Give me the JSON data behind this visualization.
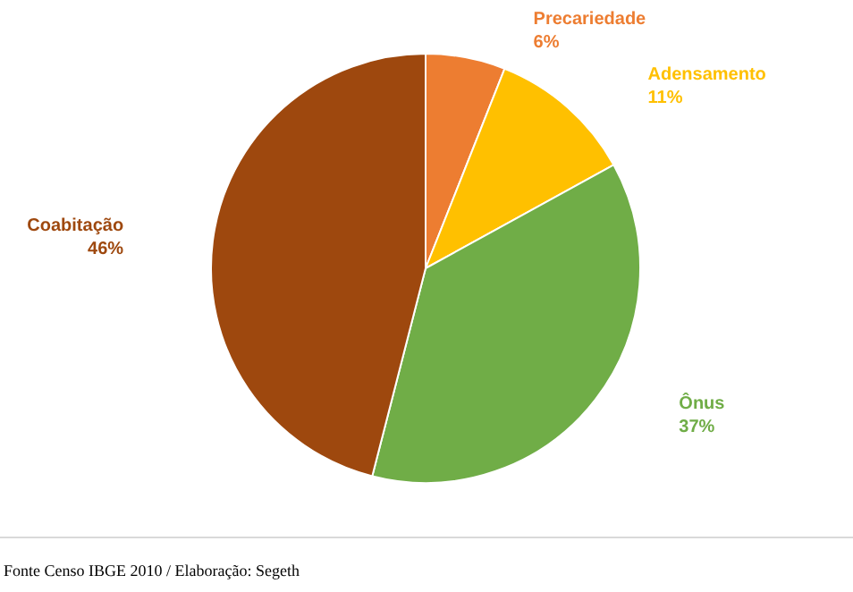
{
  "chart_data": {
    "type": "pie",
    "categories": [
      "Precariedade",
      "Adensamento",
      "Ônus",
      "Coabitação"
    ],
    "values": [
      6,
      11,
      37,
      46
    ],
    "value_labels": [
      "6%",
      "11%",
      "37%",
      "46%"
    ],
    "colors": [
      "#ed7d31",
      "#ffc000",
      "#70ad47",
      "#9e480e"
    ],
    "legend": false,
    "annotations": [
      "Fonte Censo IBGE 2010 / Elaboração: Segeth"
    ]
  }
}
